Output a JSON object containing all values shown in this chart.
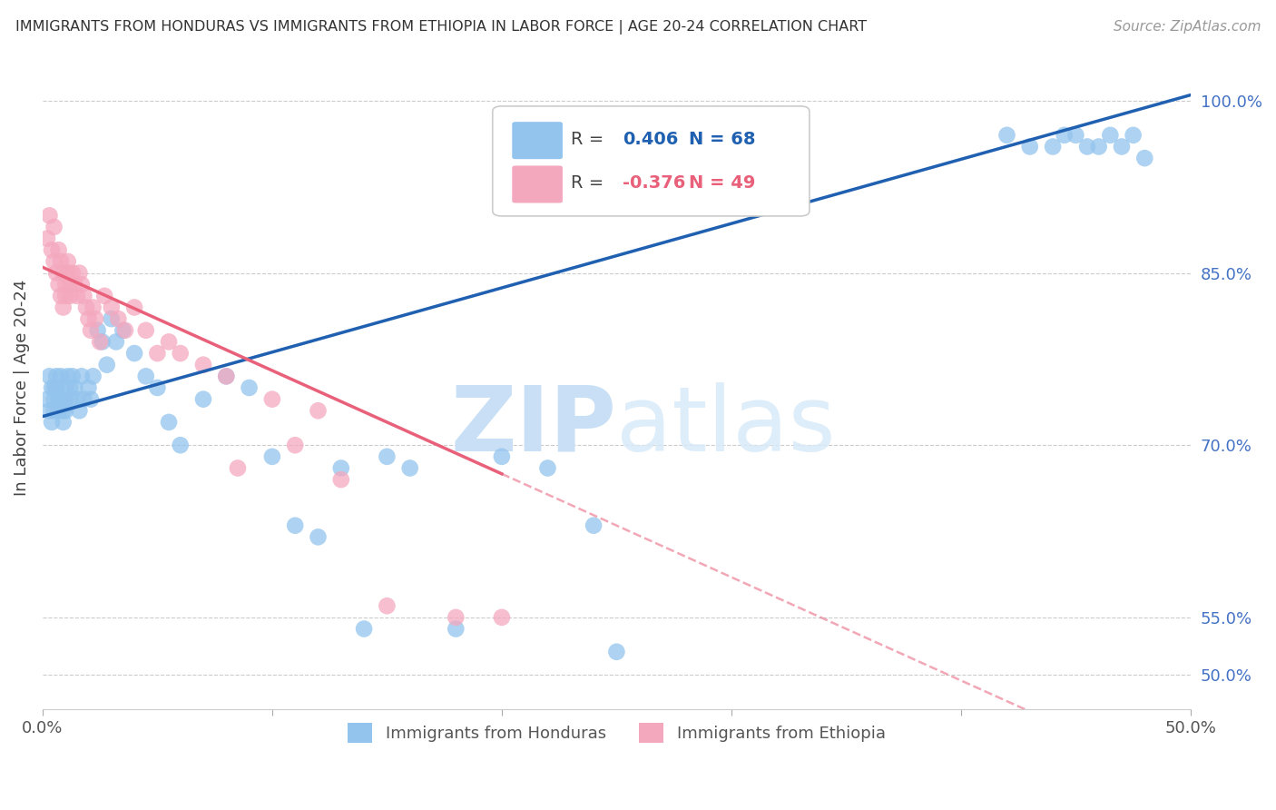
{
  "title": "IMMIGRANTS FROM HONDURAS VS IMMIGRANTS FROM ETHIOPIA IN LABOR FORCE | AGE 20-24 CORRELATION CHART",
  "source": "Source: ZipAtlas.com",
  "ylabel": "In Labor Force | Age 20-24",
  "yaxis_ticks": [
    50.0,
    55.0,
    70.0,
    85.0,
    100.0
  ],
  "xmin": 0.0,
  "xmax": 50.0,
  "ymin": 47.0,
  "ymax": 103.0,
  "R_honduras": 0.406,
  "N_honduras": 68,
  "R_ethiopia": -0.376,
  "N_ethiopia": 49,
  "color_honduras": "#93C4ED",
  "color_ethiopia": "#F4A8BE",
  "line_color_honduras": "#2060B0",
  "line_color_ethiopia": "#E8607A",
  "watermark_zip": "ZIP",
  "watermark_atlas": "atlas",
  "watermark_color": "#C8DFF5",
  "legend_R_color_honduras": "#2060B0",
  "legend_R_color_ethiopia": "#E8607A",
  "honduras_x": [
    0.2,
    0.3,
    0.3,
    0.4,
    0.4,
    0.5,
    0.5,
    0.5,
    0.6,
    0.6,
    0.7,
    0.7,
    0.8,
    0.8,
    0.9,
    0.9,
    1.0,
    1.0,
    1.0,
    1.1,
    1.2,
    1.2,
    1.3,
    1.4,
    1.5,
    1.6,
    1.7,
    1.8,
    2.0,
    2.1,
    2.2,
    2.4,
    2.6,
    2.8,
    3.0,
    3.2,
    3.5,
    4.0,
    4.5,
    5.0,
    5.5,
    6.0,
    7.0,
    8.0,
    9.0,
    10.0,
    11.0,
    12.0,
    13.0,
    14.0,
    15.0,
    16.0,
    18.0,
    20.0,
    22.0,
    24.0,
    25.0,
    42.0,
    43.0,
    44.0,
    44.5,
    45.0,
    45.5,
    46.0,
    46.5,
    47.0,
    47.5,
    48.0
  ],
  "honduras_y": [
    74.0,
    76.0,
    73.0,
    75.0,
    72.0,
    75.0,
    74.0,
    73.0,
    76.0,
    75.0,
    74.0,
    73.0,
    76.0,
    74.0,
    73.0,
    72.0,
    75.0,
    74.0,
    73.0,
    76.0,
    75.0,
    74.0,
    76.0,
    75.0,
    74.0,
    73.0,
    76.0,
    74.0,
    75.0,
    74.0,
    76.0,
    80.0,
    79.0,
    77.0,
    81.0,
    79.0,
    80.0,
    78.0,
    76.0,
    75.0,
    72.0,
    70.0,
    74.0,
    76.0,
    75.0,
    69.0,
    63.0,
    62.0,
    68.0,
    54.0,
    69.0,
    68.0,
    54.0,
    69.0,
    68.0,
    63.0,
    52.0,
    97.0,
    96.0,
    96.0,
    97.0,
    97.0,
    96.0,
    96.0,
    97.0,
    96.0,
    97.0,
    95.0
  ],
  "ethiopia_x": [
    0.2,
    0.3,
    0.4,
    0.5,
    0.5,
    0.6,
    0.7,
    0.7,
    0.8,
    0.8,
    0.9,
    0.9,
    1.0,
    1.0,
    1.1,
    1.1,
    1.2,
    1.2,
    1.3,
    1.4,
    1.5,
    1.6,
    1.7,
    1.8,
    1.9,
    2.0,
    2.1,
    2.2,
    2.3,
    2.5,
    2.7,
    3.0,
    3.3,
    3.6,
    4.0,
    4.5,
    5.0,
    5.5,
    6.0,
    7.0,
    8.0,
    8.5,
    10.0,
    12.0,
    15.0,
    18.0,
    20.0,
    11.0,
    13.0
  ],
  "ethiopia_y": [
    88.0,
    90.0,
    87.0,
    89.0,
    86.0,
    85.0,
    87.0,
    84.0,
    86.0,
    83.0,
    85.0,
    82.0,
    84.0,
    83.0,
    86.0,
    85.0,
    84.0,
    83.0,
    85.0,
    84.0,
    83.0,
    85.0,
    84.0,
    83.0,
    82.0,
    81.0,
    80.0,
    82.0,
    81.0,
    79.0,
    83.0,
    82.0,
    81.0,
    80.0,
    82.0,
    80.0,
    78.0,
    79.0,
    78.0,
    77.0,
    76.0,
    68.0,
    74.0,
    73.0,
    56.0,
    55.0,
    55.0,
    70.0,
    67.0
  ],
  "blue_line_y_at_0": 72.5,
  "blue_line_y_at_50": 100.5,
  "pink_line_y_at_0": 85.5,
  "pink_line_y_at_20": 67.5
}
